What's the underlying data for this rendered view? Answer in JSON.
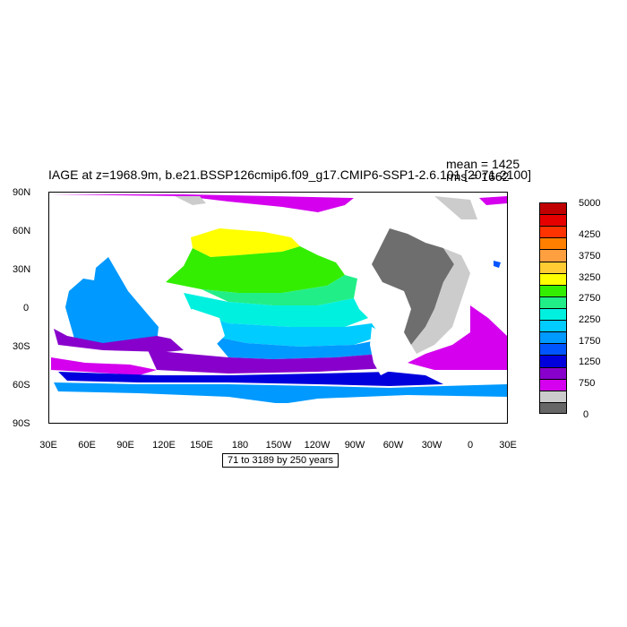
{
  "title": "IAGE at z=1968.9m, b.e21.BSSP126cmip6.f09_g17.CMIP6-SSP1-2.6.101 [2071-2100]",
  "stats": {
    "mean": "mean = 1425",
    "rms": "rms = 1662"
  },
  "range_box": "71 to 3189 by 250 years",
  "lat_labels": [
    "90N",
    "60N",
    "30N",
    "0",
    "30S",
    "60S",
    "90S"
  ],
  "lon_labels": [
    "30E",
    "60E",
    "90E",
    "120E",
    "150E",
    "180",
    "150W",
    "120W",
    "90W",
    "60W",
    "30W",
    "0",
    "30E"
  ],
  "colorbar": {
    "labels": [
      "5000",
      "4250",
      "3750",
      "3250",
      "2750",
      "2250",
      "1750",
      "1250",
      "750",
      "0"
    ],
    "colors": [
      "#c00000",
      "#e60000",
      "#ff3300",
      "#ff7f00",
      "#ffa040",
      "#ffcc33",
      "#ffff00",
      "#33ee00",
      "#22ee88",
      "#00f0e0",
      "#00ccff",
      "#0099ff",
      "#0055ff",
      "#0000dd",
      "#8800cc",
      "#d400ee",
      "#cccccc",
      "#666666"
    ]
  },
  "colors": {
    "land": "#ffffff",
    "missing_gray": "#cccccc",
    "dark_gray": "#6e6e6e"
  }
}
